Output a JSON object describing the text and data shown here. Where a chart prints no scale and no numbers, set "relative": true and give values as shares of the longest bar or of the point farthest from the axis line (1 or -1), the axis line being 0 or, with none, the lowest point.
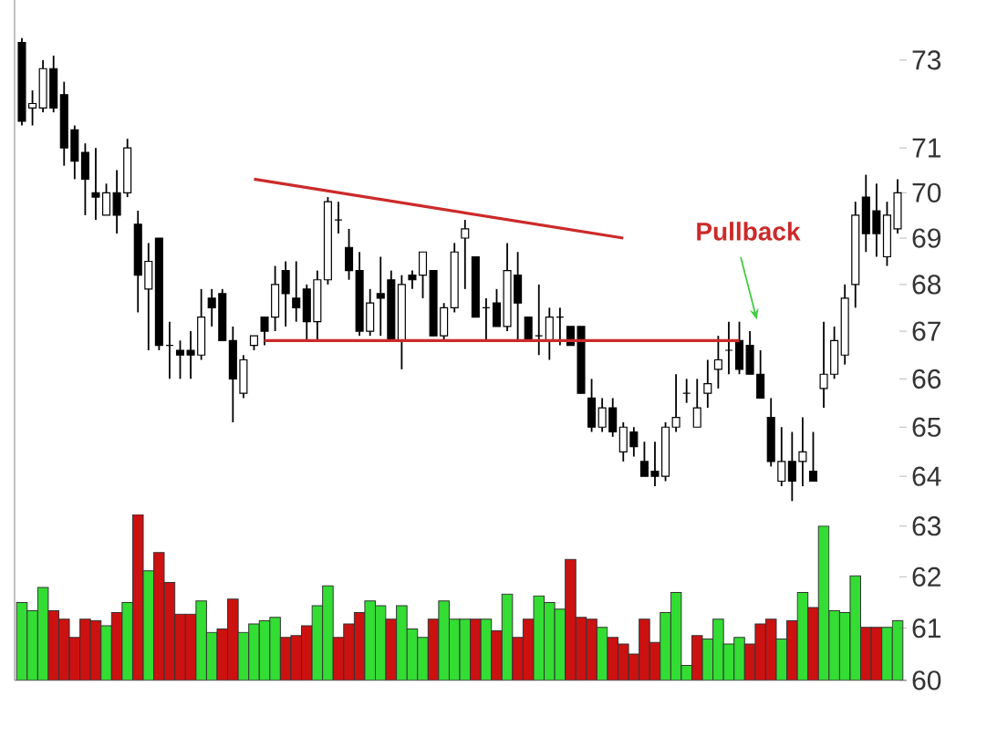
{
  "chart_data": [
    {
      "type": "candlestick",
      "log": true,
      "tick_labels": "y",
      "ylim": [
        60,
        74.4
      ],
      "yticks": [
        60,
        61,
        62,
        63,
        64,
        65,
        66,
        67,
        68,
        69,
        70,
        71,
        73
      ],
      "categories": [
        null,
        null,
        null,
        null,
        null,
        null,
        null,
        null,
        null,
        null,
        null,
        null,
        null,
        null,
        null,
        null,
        null,
        null,
        null,
        null,
        null,
        null,
        null,
        null,
        null,
        null,
        null,
        null,
        null,
        null,
        null,
        null,
        null,
        null,
        null,
        null,
        null,
        null,
        null,
        null,
        null,
        null,
        null,
        null,
        null,
        null,
        null,
        null,
        null,
        null,
        null,
        null,
        null,
        null,
        null,
        null,
        null,
        null,
        null,
        null,
        null,
        null,
        null,
        null,
        null,
        null,
        null,
        null,
        null,
        null,
        null,
        null,
        null,
        null,
        null,
        null,
        null,
        null,
        null,
        null,
        null,
        null,
        null,
        null
      ],
      "ohlc": [
        [
          73.4,
          73.5,
          71.5,
          71.6
        ],
        [
          71.9,
          72.3,
          71.5,
          72.0
        ],
        [
          71.9,
          73.0,
          71.8,
          72.8
        ],
        [
          72.8,
          73.1,
          71.8,
          71.9
        ],
        [
          72.2,
          72.5,
          70.6,
          71.0
        ],
        [
          71.4,
          71.5,
          70.3,
          70.7
        ],
        [
          70.9,
          71.1,
          69.5,
          70.3
        ],
        [
          70.0,
          71.0,
          69.4,
          69.9
        ],
        [
          69.5,
          70.2,
          69.5,
          70.0
        ],
        [
          70.0,
          70.5,
          69.1,
          69.5
        ],
        [
          70.0,
          71.2,
          69.9,
          71.0
        ],
        [
          69.3,
          69.6,
          67.4,
          68.2
        ],
        [
          67.9,
          68.9,
          66.6,
          68.5
        ],
        [
          69.0,
          69.0,
          66.6,
          66.7
        ],
        [
          66.7,
          67.2,
          66.0,
          66.7
        ],
        [
          66.6,
          66.8,
          66.0,
          66.5
        ],
        [
          66.6,
          67.0,
          66.0,
          66.5
        ],
        [
          66.5,
          67.9,
          66.4,
          67.3
        ],
        [
          67.7,
          67.9,
          67.1,
          67.5
        ],
        [
          67.8,
          67.9,
          66.8,
          66.8
        ],
        [
          66.8,
          67.1,
          65.1,
          66.0
        ],
        [
          65.7,
          66.5,
          65.6,
          66.4
        ],
        [
          66.7,
          66.9,
          66.6,
          66.9
        ],
        [
          67.3,
          67.3,
          66.7,
          67.0
        ],
        [
          67.3,
          68.4,
          67.0,
          68.0
        ],
        [
          68.3,
          68.5,
          67.1,
          67.8
        ],
        [
          67.7,
          68.5,
          67.2,
          67.5
        ],
        [
          67.9,
          68.0,
          66.8,
          67.2
        ],
        [
          67.2,
          68.3,
          66.8,
          68.1
        ],
        [
          68.1,
          69.9,
          68.0,
          69.8
        ],
        [
          69.4,
          69.8,
          69.1,
          69.4
        ],
        [
          68.8,
          69.2,
          68.1,
          68.3
        ],
        [
          68.3,
          68.7,
          66.9,
          67.0
        ],
        [
          67.0,
          67.9,
          66.9,
          67.6
        ],
        [
          67.8,
          68.6,
          66.9,
          67.7
        ],
        [
          68.1,
          68.3,
          66.8,
          66.8
        ],
        [
          66.8,
          68.2,
          66.2,
          68.0
        ],
        [
          68.2,
          68.3,
          67.9,
          68.1
        ],
        [
          68.2,
          68.7,
          67.7,
          68.7
        ],
        [
          68.3,
          68.3,
          66.9,
          66.9
        ],
        [
          66.9,
          67.6,
          66.8,
          67.5
        ],
        [
          67.5,
          68.9,
          67.4,
          68.7
        ],
        [
          69.0,
          69.4,
          67.9,
          69.2
        ],
        [
          68.6,
          68.6,
          67.3,
          67.3
        ],
        [
          67.5,
          67.7,
          66.8,
          67.5
        ],
        [
          67.6,
          67.9,
          67.1,
          67.1
        ],
        [
          67.1,
          68.9,
          67.0,
          68.3
        ],
        [
          68.2,
          68.7,
          66.8,
          67.6
        ],
        [
          67.3,
          67.3,
          66.8,
          66.8
        ],
        [
          66.9,
          68.0,
          66.5,
          66.9
        ],
        [
          66.8,
          67.5,
          66.4,
          67.3
        ],
        [
          67.3,
          67.5,
          66.7,
          67.3
        ],
        [
          67.1,
          67.1,
          66.7,
          66.7
        ],
        [
          67.1,
          67.1,
          65.7,
          65.7
        ],
        [
          65.6,
          66.0,
          64.9,
          65.0
        ],
        [
          65.0,
          65.6,
          64.9,
          65.4
        ],
        [
          65.4,
          65.6,
          64.8,
          64.9
        ],
        [
          64.5,
          65.1,
          64.3,
          65.0
        ],
        [
          64.9,
          65.0,
          64.4,
          64.6
        ],
        [
          64.3,
          64.7,
          64.0,
          64.0
        ],
        [
          64.1,
          64.7,
          63.8,
          64.0
        ],
        [
          64.0,
          65.1,
          63.9,
          65.0
        ],
        [
          65.0,
          66.1,
          64.9,
          65.2
        ],
        [
          65.7,
          66.0,
          65.5,
          65.7
        ],
        [
          65.0,
          66.0,
          65.0,
          65.4
        ],
        [
          65.7,
          66.4,
          65.4,
          65.9
        ],
        [
          66.2,
          66.9,
          65.8,
          66.4
        ],
        [
          66.6,
          67.2,
          66.1,
          66.6
        ],
        [
          66.8,
          67.2,
          66.1,
          66.2
        ],
        [
          66.7,
          67.0,
          66.1,
          66.1
        ],
        [
          66.1,
          66.6,
          65.6,
          65.6
        ],
        [
          65.2,
          65.6,
          64.2,
          64.3
        ],
        [
          63.9,
          65.0,
          63.8,
          64.3
        ],
        [
          64.3,
          64.9,
          63.5,
          63.9
        ],
        [
          64.3,
          65.2,
          63.8,
          64.5
        ],
        [
          64.1,
          64.9,
          63.9,
          63.9
        ],
        [
          65.8,
          67.2,
          65.4,
          66.1
        ],
        [
          66.1,
          67.1,
          66.0,
          66.8
        ],
        [
          66.5,
          68.0,
          66.3,
          67.7
        ],
        [
          68.0,
          69.8,
          67.5,
          69.5
        ],
        [
          69.9,
          70.4,
          68.7,
          69.1
        ],
        [
          69.6,
          70.2,
          68.6,
          69.1
        ],
        [
          68.6,
          69.8,
          68.4,
          69.5
        ],
        [
          69.2,
          70.3,
          69.1,
          70.0
        ]
      ],
      "series": [
        {
          "type": "line",
          "color": "#cc2a2a",
          "values": [
            null,
            null,
            null,
            null,
            null,
            null,
            null,
            null,
            null,
            null,
            null,
            null,
            null,
            null,
            null,
            null,
            null,
            null,
            null,
            null,
            null,
            null,
            70.3,
            null,
            null,
            null,
            null,
            null,
            null,
            null,
            null,
            null,
            null,
            null,
            null,
            null,
            null,
            null,
            null,
            null,
            null,
            null,
            null,
            null,
            null,
            null,
            null,
            null,
            null,
            null,
            null,
            null,
            null,
            null,
            null,
            null,
            null,
            69.0,
            null,
            null,
            null,
            null,
            null,
            null,
            null,
            null,
            null,
            null,
            null,
            null,
            null,
            null,
            null,
            null,
            null,
            null,
            null,
            null,
            null,
            null,
            null,
            null,
            null,
            null
          ]
        },
        {
          "type": "line",
          "color": "#cc2a2a",
          "values": [
            null,
            null,
            null,
            null,
            null,
            null,
            null,
            null,
            null,
            null,
            null,
            null,
            null,
            null,
            null,
            null,
            null,
            null,
            null,
            null,
            null,
            null,
            null,
            66.8,
            null,
            null,
            null,
            null,
            null,
            null,
            null,
            null,
            null,
            null,
            null,
            null,
            null,
            null,
            null,
            null,
            null,
            null,
            null,
            null,
            null,
            null,
            null,
            null,
            null,
            null,
            null,
            null,
            null,
            null,
            null,
            null,
            null,
            null,
            null,
            null,
            null,
            null,
            null,
            null,
            null,
            null,
            null,
            null,
            66.8,
            null,
            null,
            null,
            null,
            null,
            null,
            null,
            null,
            null,
            null,
            null,
            null,
            null,
            null,
            null
          ]
        }
      ],
      "annotations": [
        "Pullback"
      ]
    },
    {
      "type": "bar",
      "relative": true,
      "categories": [
        null,
        null,
        null,
        null,
        null,
        null,
        null,
        null,
        null,
        null,
        null,
        null,
        null,
        null,
        null,
        null,
        null,
        null,
        null,
        null,
        null,
        null,
        null,
        null,
        null,
        null,
        null,
        null,
        null,
        null,
        null,
        null,
        null,
        null,
        null,
        null,
        null,
        null,
        null,
        null,
        null,
        null,
        null,
        null,
        null,
        null,
        null,
        null,
        null,
        null,
        null,
        null,
        null,
        null,
        null,
        null,
        null,
        null,
        null,
        null,
        null,
        null,
        null,
        null,
        null,
        null,
        null,
        null,
        null,
        null,
        null,
        null,
        null,
        null,
        null,
        null,
        null,
        null,
        null,
        null,
        null,
        null,
        null,
        null
      ],
      "values": [
        0.47,
        0.42,
        0.56,
        0.42,
        0.37,
        0.26,
        0.37,
        0.36,
        0.33,
        0.41,
        0.47,
        1,
        0.66,
        0.77,
        0.59,
        0.4,
        0.4,
        0.48,
        0.29,
        0.31,
        0.49,
        0.29,
        0.34,
        0.36,
        0.38,
        0.26,
        0.27,
        0.33,
        0.45,
        0.57,
        0.26,
        0.34,
        0.41,
        0.48,
        0.45,
        0.37,
        0.45,
        0.31,
        0.26,
        0.37,
        0.48,
        0.37,
        0.37,
        0.37,
        0.37,
        0.3,
        0.52,
        0.26,
        0.37,
        0.51,
        0.47,
        0.43,
        0.73,
        0.38,
        0.37,
        0.32,
        0.26,
        0.22,
        0.16,
        0.37,
        0.23,
        0.41,
        0.53,
        0.09,
        0.27,
        0.25,
        0.37,
        0.22,
        0.26,
        0.22,
        0.34,
        0.37,
        0.25,
        0.36,
        0.53,
        0.44,
        0.93,
        0.42,
        0.41,
        0.63,
        0.32,
        0.32,
        0.32,
        0.36
      ],
      "colors": [
        "#33dd33",
        "#33dd33",
        "#33dd33",
        "#cc1111",
        "#cc1111",
        "#cc1111",
        "#cc1111",
        "#cc1111",
        "#33dd33",
        "#cc1111",
        "#33dd33",
        "#cc1111",
        "#33dd33",
        "#cc1111",
        "#cc1111",
        "#cc1111",
        "#cc1111",
        "#33dd33",
        "#33dd33",
        "#cc1111",
        "#cc1111",
        "#33dd33",
        "#33dd33",
        "#33dd33",
        "#33dd33",
        "#cc1111",
        "#cc1111",
        "#cc1111",
        "#33dd33",
        "#33dd33",
        "#cc1111",
        "#cc1111",
        "#cc1111",
        "#33dd33",
        "#33dd33",
        "#cc1111",
        "#33dd33",
        "#33dd33",
        "#33dd33",
        "#cc1111",
        "#33dd33",
        "#33dd33",
        "#33dd33",
        "#cc1111",
        "#33dd33",
        "#cc1111",
        "#33dd33",
        "#cc1111",
        "#cc1111",
        "#33dd33",
        "#33dd33",
        "#33dd33",
        "#cc1111",
        "#cc1111",
        "#cc1111",
        "#33dd33",
        "#cc1111",
        "#cc1111",
        "#cc1111",
        "#cc1111",
        "#cc1111",
        "#33dd33",
        "#33dd33",
        "#33dd33",
        "#cc1111",
        "#33dd33",
        "#33dd33",
        "#33dd33",
        "#33dd33",
        "#cc1111",
        "#cc1111",
        "#cc1111",
        "#33dd33",
        "#cc1111",
        "#33dd33",
        "#cc1111",
        "#33dd33",
        "#33dd33",
        "#33dd33",
        "#33dd33",
        "#cc1111",
        "#cc1111",
        "#33dd33",
        "#33dd33"
      ]
    }
  ]
}
